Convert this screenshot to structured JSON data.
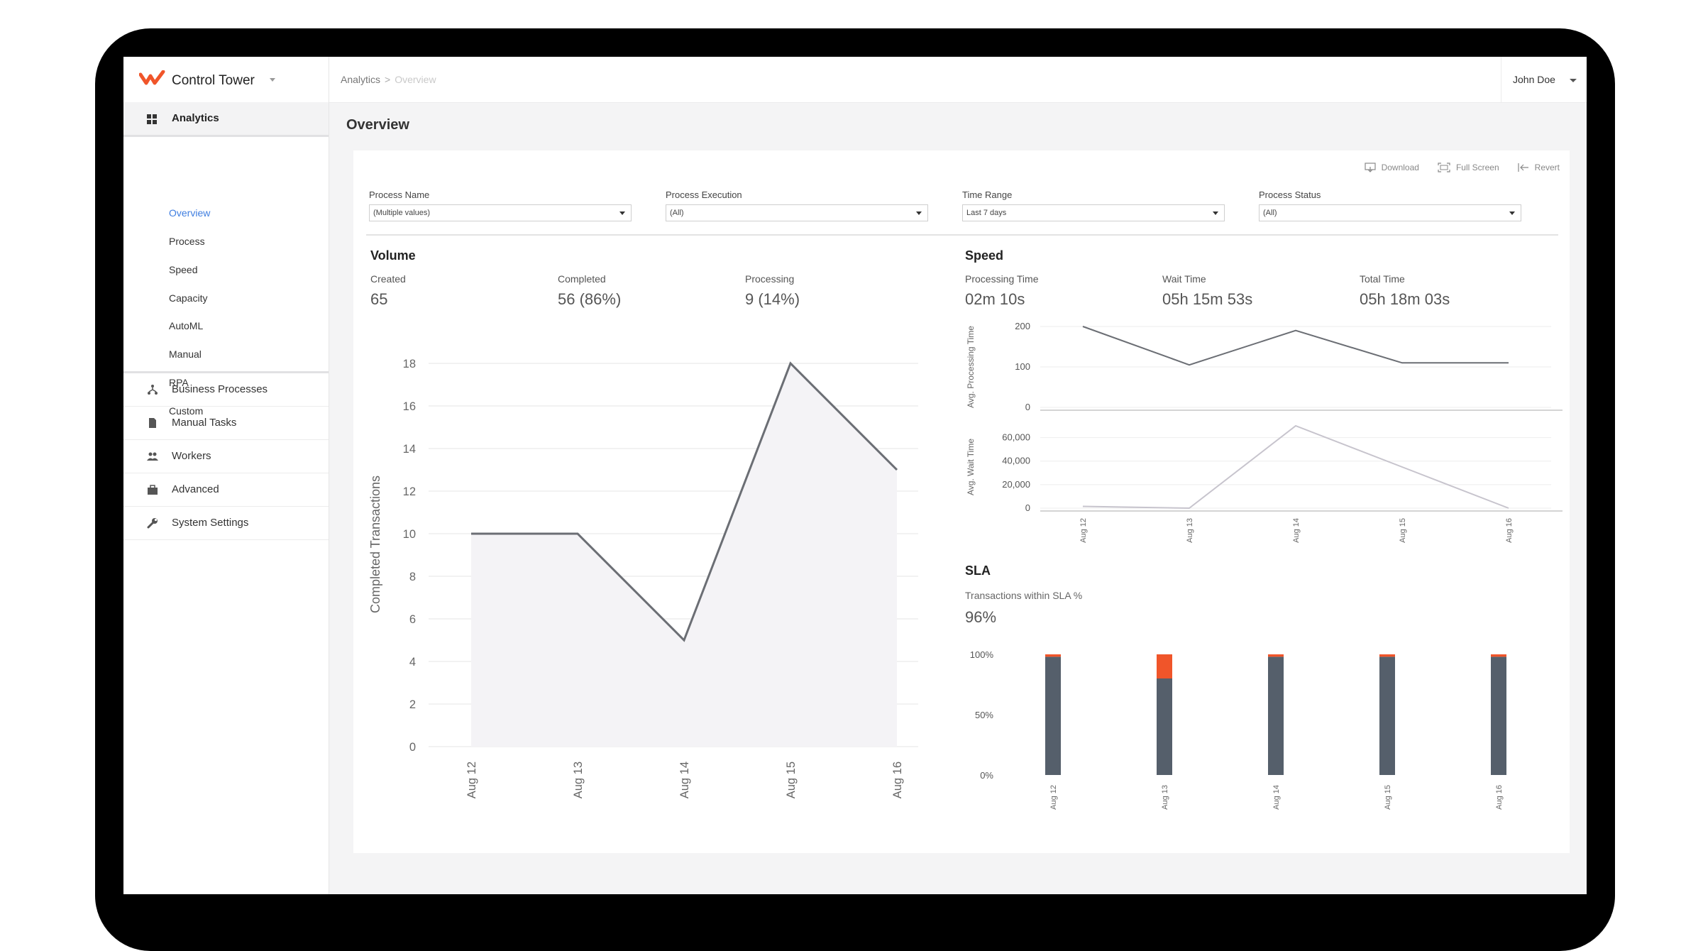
{
  "app": {
    "name": "Control Tower",
    "brand_color": "#f0552a"
  },
  "sidebar": {
    "section": {
      "label": "Analytics",
      "icon": "dashboard-icon"
    },
    "subitems": [
      "Overview",
      "Process",
      "Speed",
      "Capacity",
      "AutoML",
      "Manual",
      "RPA",
      "Custom"
    ],
    "active_subitem": "Overview",
    "groups": [
      {
        "label": "Business Processes",
        "icon": "hierarchy-icon"
      },
      {
        "label": "Manual Tasks",
        "icon": "document-icon"
      },
      {
        "label": "Workers",
        "icon": "people-icon"
      },
      {
        "label": "Advanced",
        "icon": "briefcase-icon"
      },
      {
        "label": "System Settings",
        "icon": "wrench-icon"
      }
    ]
  },
  "header": {
    "breadcrumb": [
      "Analytics",
      "Overview"
    ],
    "user": "John Doe"
  },
  "page": {
    "title": "Overview"
  },
  "toolbar": {
    "download": "Download",
    "fullscreen": "Full Screen",
    "revert": "Revert"
  },
  "filters": [
    {
      "label": "Process Name",
      "value": "(Multiple values)"
    },
    {
      "label": "Process Execution",
      "value": "(All)"
    },
    {
      "label": "Time Range",
      "value": "Last 7 days"
    },
    {
      "label": "Process Status",
      "value": "(All)"
    }
  ],
  "volume": {
    "title": "Volume",
    "kpis": [
      {
        "label": "Created",
        "value": "65"
      },
      {
        "label": "Completed",
        "value": "56 (86%)"
      },
      {
        "label": "Processing",
        "value": "9 (14%)"
      }
    ]
  },
  "speed": {
    "title": "Speed",
    "kpis": [
      {
        "label": "Processing Time",
        "value": "02m 10s"
      },
      {
        "label": "Wait Time",
        "value": "05h 15m 53s"
      },
      {
        "label": "Total Time",
        "value": "05h 18m 03s"
      }
    ]
  },
  "sla": {
    "title": "SLA",
    "label": "Transactions within SLA %",
    "value": "96%"
  },
  "chart_data": [
    {
      "type": "area",
      "ylabel": "Completed Transactions",
      "categories": [
        "Aug 12",
        "Aug 13",
        "Aug 14",
        "Aug 15",
        "Aug 16"
      ],
      "values": [
        10,
        10,
        5,
        18,
        13
      ],
      "ylim": [
        0,
        19
      ],
      "yticks": [
        0,
        2,
        4,
        6,
        8,
        10,
        12,
        14,
        16,
        18
      ],
      "grid": true
    },
    {
      "type": "line",
      "ylabel": "Avg. Processing Time",
      "categories": [
        "Aug 12",
        "Aug 13",
        "Aug 14",
        "Aug 15",
        "Aug 16"
      ],
      "values": [
        200,
        105,
        190,
        110,
        110
      ],
      "ylim": [
        0,
        200
      ],
      "yticks": [
        "0",
        "100",
        "200"
      ]
    },
    {
      "type": "line",
      "ylabel": "Avg. Wait Time",
      "categories": [
        "Aug 12",
        "Aug 13",
        "Aug 14",
        "Aug 15",
        "Aug 16"
      ],
      "values": [
        1500,
        0,
        70000,
        35000,
        0
      ],
      "ylim": [
        0,
        70000
      ],
      "yticks": [
        "0",
        "20,000",
        "40,000",
        "60,000"
      ]
    },
    {
      "type": "bar",
      "stacked": true,
      "categories": [
        "Aug 12",
        "Aug 13",
        "Aug 14",
        "Aug 15",
        "Aug 16"
      ],
      "series": [
        {
          "values": [
            98,
            80,
            98,
            98,
            98
          ],
          "color": "#555f6b"
        },
        {
          "values": [
            2,
            20,
            2,
            2,
            2
          ],
          "color": "#f0552a"
        }
      ],
      "ylim": [
        0,
        100
      ],
      "yticks": [
        "0%",
        "50%",
        "100%"
      ]
    }
  ]
}
